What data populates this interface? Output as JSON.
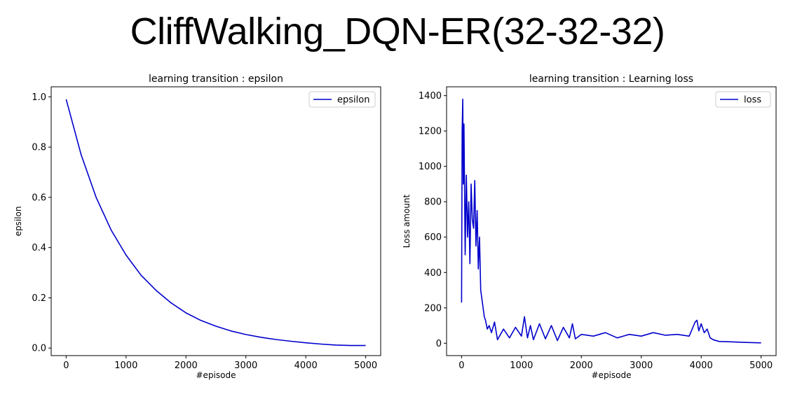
{
  "page_title": "CliffWalking_DQN-ER(32-32-32)",
  "colors": {
    "line": "#0000cc",
    "axes": "#000000",
    "background": "#ffffff"
  },
  "chart_data": [
    {
      "type": "line",
      "title": "learning transition : epsilon",
      "xlabel": "#episode",
      "ylabel": "epsilon",
      "xlim": [
        -250,
        5250
      ],
      "ylim": [
        -0.03,
        1.04
      ],
      "xticks": [
        0,
        1000,
        2000,
        3000,
        4000,
        5000
      ],
      "xtick_labels": [
        "0",
        "1000",
        "2000",
        "3000",
        "4000",
        "5000"
      ],
      "yticks": [
        0.0,
        0.2,
        0.4,
        0.6,
        0.8,
        1.0
      ],
      "ytick_labels": [
        "0.0",
        "0.2",
        "0.4",
        "0.6",
        "0.8",
        "1.0"
      ],
      "legend_position": "top-right",
      "grid": false,
      "series": [
        {
          "name": "epsilon",
          "x": [
            0,
            250,
            500,
            750,
            1000,
            1250,
            1500,
            1750,
            2000,
            2250,
            2500,
            2750,
            3000,
            3250,
            3500,
            3750,
            4000,
            4250,
            4500,
            4750,
            5000
          ],
          "y": [
            0.99,
            0.77,
            0.6,
            0.47,
            0.37,
            0.29,
            0.23,
            0.18,
            0.14,
            0.11,
            0.087,
            0.068,
            0.054,
            0.043,
            0.034,
            0.027,
            0.021,
            0.016,
            0.012,
            0.01,
            0.01
          ]
        }
      ]
    },
    {
      "type": "line",
      "title": "learning transition : Learning loss",
      "xlabel": "#episode",
      "ylabel": "Loss amount",
      "xlim": [
        -250,
        5250
      ],
      "ylim": [
        -70,
        1450
      ],
      "xticks": [
        0,
        1000,
        2000,
        3000,
        4000,
        5000
      ],
      "xtick_labels": [
        "0",
        "1000",
        "2000",
        "3000",
        "4000",
        "5000"
      ],
      "yticks": [
        0,
        200,
        400,
        600,
        800,
        1000,
        1200,
        1400
      ],
      "ytick_labels": [
        "0",
        "200",
        "400",
        "600",
        "800",
        "1000",
        "1200",
        "1400"
      ],
      "legend_position": "top-right",
      "grid": false,
      "series": [
        {
          "name": "loss",
          "x": [
            0,
            10,
            20,
            30,
            40,
            60,
            80,
            100,
            120,
            140,
            160,
            180,
            200,
            220,
            240,
            260,
            280,
            300,
            320,
            340,
            360,
            380,
            400,
            430,
            460,
            500,
            550,
            600,
            700,
            800,
            900,
            1000,
            1050,
            1100,
            1150,
            1200,
            1300,
            1400,
            1500,
            1600,
            1700,
            1800,
            1850,
            1900,
            2000,
            2200,
            2400,
            2600,
            2800,
            3000,
            3200,
            3400,
            3600,
            3800,
            3900,
            3930,
            3960,
            4000,
            4050,
            4100,
            4150,
            4200,
            4300,
            4500,
            4700,
            5000
          ],
          "y": [
            230,
            1200,
            1380,
            900,
            1240,
            500,
            950,
            600,
            800,
            450,
            900,
            700,
            650,
            920,
            550,
            750,
            420,
            600,
            300,
            250,
            200,
            150,
            130,
            80,
            100,
            60,
            120,
            20,
            80,
            30,
            90,
            40,
            150,
            30,
            100,
            20,
            110,
            25,
            100,
            15,
            90,
            30,
            110,
            25,
            50,
            40,
            60,
            30,
            50,
            40,
            60,
            45,
            50,
            40,
            120,
            130,
            70,
            110,
            60,
            80,
            30,
            20,
            10,
            8,
            5,
            2
          ]
        }
      ]
    }
  ]
}
